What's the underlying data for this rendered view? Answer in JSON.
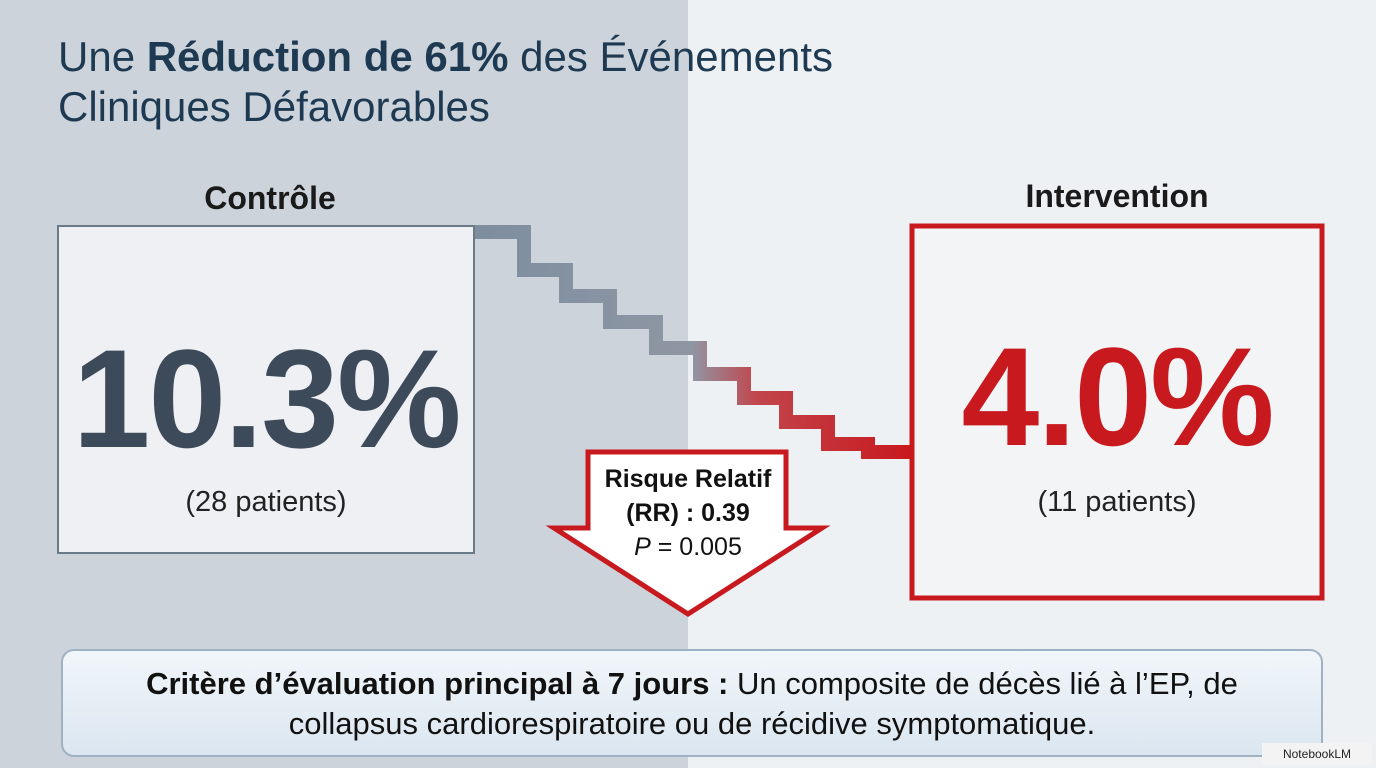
{
  "title": {
    "prefix": "Une ",
    "bold": "Réduction de 61%",
    "suffix": " des Événements",
    "line2": "Cliniques Défavorables"
  },
  "control": {
    "label": "Contrôle",
    "value": "10.3%",
    "note": "(28 patients)"
  },
  "intervention": {
    "label": "Intervention",
    "value": "4.0%",
    "note": "(11 patients)"
  },
  "arrow": {
    "line1": "Risque Relatif",
    "rr_prefix": "(RR) : ",
    "rr_value": "0.39",
    "p_label": "P",
    "p_value": " = 0.005"
  },
  "footer": {
    "bold": "Critère d’évaluation principal à 7 jours :",
    "text": " Un composite de décès lié à l’EP, de collapsus cardiorespiratoire ou de récidive symptomatique."
  },
  "watermark": "NotebookLM"
}
